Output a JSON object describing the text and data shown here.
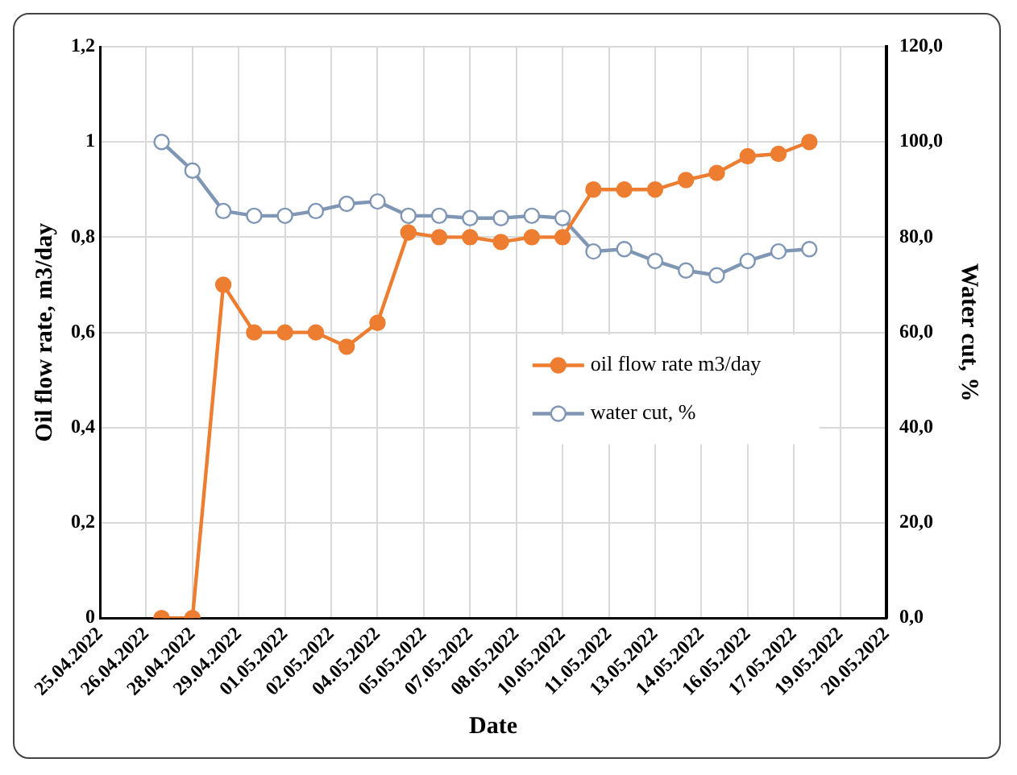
{
  "chart_data": {
    "type": "line",
    "xlabel": "Date",
    "ylabel": "Oil flow rate, m3/day",
    "y2label": "Water cut, %",
    "x": [
      "2022-04-27",
      "2022-04-28",
      "2022-04-29",
      "2022-04-30",
      "2022-05-01",
      "2022-05-02",
      "2022-05-03",
      "2022-05-04",
      "2022-05-05",
      "2022-05-06",
      "2022-05-07",
      "2022-05-08",
      "2022-05-09",
      "2022-05-10",
      "2022-05-11",
      "2022-05-12",
      "2022-05-13",
      "2022-05-14",
      "2022-05-15",
      "2022-05-16",
      "2022-05-17",
      "2022-05-18"
    ],
    "series": [
      {
        "name": "oil flow rate m3/day",
        "color": "#ed7d31",
        "values": [
          0,
          0,
          0.7,
          0.6,
          0.6,
          0.6,
          0.57,
          0.62,
          0.81,
          0.8,
          0.8,
          0.79,
          0.8,
          0.8,
          0.9,
          0.9,
          0.9,
          0.92,
          0.935,
          0.97,
          0.975,
          1.0
        ]
      },
      {
        "name": "water cut, %",
        "color": "#7f96b4",
        "axis": "y2",
        "values": [
          100,
          94,
          85.5,
          84.5,
          84.5,
          85.5,
          87,
          87.5,
          84.5,
          84.5,
          84,
          84,
          84.5,
          84,
          77,
          77.5,
          75,
          73,
          72,
          75,
          77,
          77.5
        ]
      }
    ],
    "xlim": [
      "2022-04-25",
      "2022-05-20T12:00"
    ],
    "xticks": [
      {
        "value": "2022-04-25",
        "label": "25.04.2022"
      },
      {
        "value": "2022-04-26T12:00",
        "label": "26.04.2022"
      },
      {
        "value": "2022-04-28",
        "label": "28.04.2022"
      },
      {
        "value": "2022-04-29T12:00",
        "label": "29.04.2022"
      },
      {
        "value": "2022-05-01",
        "label": "01.05.2022"
      },
      {
        "value": "2022-05-02T12:00",
        "label": "02.05.2022"
      },
      {
        "value": "2022-05-04",
        "label": "04.05.2022"
      },
      {
        "value": "2022-05-05T12:00",
        "label": "05.05.2022"
      },
      {
        "value": "2022-05-07",
        "label": "07.05.2022"
      },
      {
        "value": "2022-05-08T12:00",
        "label": "08.05.2022"
      },
      {
        "value": "2022-05-10",
        "label": "10.05.2022"
      },
      {
        "value": "2022-05-11T12:00",
        "label": "11.05.2022"
      },
      {
        "value": "2022-05-13",
        "label": "13.05.2022"
      },
      {
        "value": "2022-05-14T12:00",
        "label": "14.05.2022"
      },
      {
        "value": "2022-05-16",
        "label": "16.05.2022"
      },
      {
        "value": "2022-05-17T12:00",
        "label": "17.05.2022"
      },
      {
        "value": "2022-05-19",
        "label": "19.05.2022"
      },
      {
        "value": "2022-05-20T12:00",
        "label": "20.05.2022"
      }
    ],
    "ylim": [
      0,
      1.2
    ],
    "yticks": [
      0,
      {
        "value": 0.2,
        "label": "0,2"
      },
      {
        "value": 0.4,
        "label": "0,4"
      },
      {
        "value": 0.6,
        "label": "0,6"
      },
      {
        "value": 0.8,
        "label": "0,8"
      },
      1,
      {
        "value": 1.2,
        "label": "1,2"
      }
    ],
    "y2lim": [
      0,
      120
    ],
    "y2ticks": [
      {
        "value": 0,
        "label": "0,0"
      },
      {
        "value": 20,
        "label": "20,0"
      },
      {
        "value": 40,
        "label": "40,0"
      },
      {
        "value": 60,
        "label": "60,0"
      },
      {
        "value": 80,
        "label": "80,0"
      },
      {
        "value": 100,
        "label": "100,0"
      },
      {
        "value": 120,
        "label": "120,0"
      }
    ],
    "grid": true,
    "legend": "right",
    "marker": "circle",
    "line_style": "solid"
  }
}
